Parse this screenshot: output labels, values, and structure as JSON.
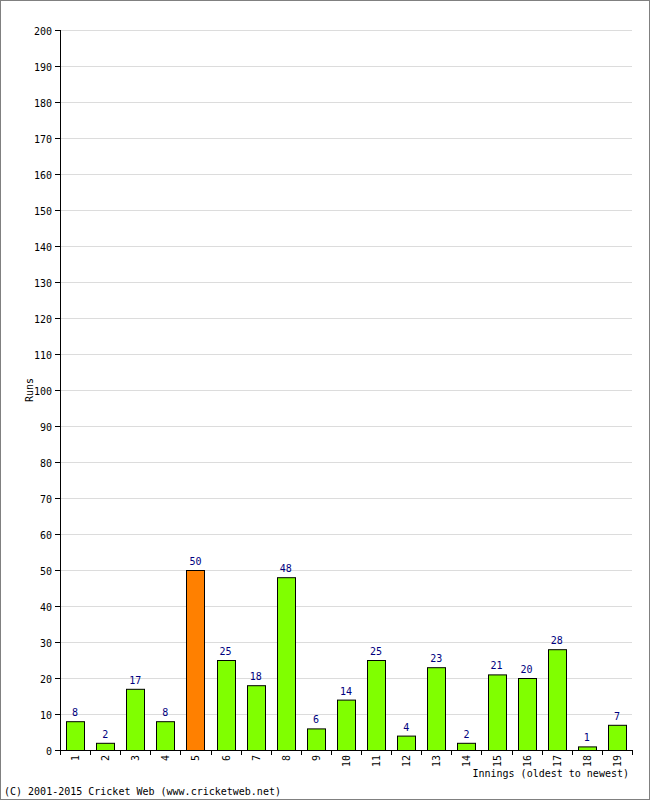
{
  "chart_data": {
    "type": "bar",
    "categories": [
      "1",
      "2",
      "3",
      "4",
      "5",
      "6",
      "7",
      "8",
      "9",
      "10",
      "11",
      "12",
      "13",
      "14",
      "15",
      "16",
      "17",
      "18",
      "19"
    ],
    "values": [
      8,
      2,
      17,
      8,
      50,
      25,
      18,
      48,
      6,
      14,
      25,
      4,
      23,
      2,
      21,
      20,
      28,
      1,
      7
    ],
    "colors": [
      "#80ff00",
      "#80ff00",
      "#80ff00",
      "#80ff00",
      "#ff8000",
      "#80ff00",
      "#80ff00",
      "#80ff00",
      "#80ff00",
      "#80ff00",
      "#80ff00",
      "#80ff00",
      "#80ff00",
      "#80ff00",
      "#80ff00",
      "#80ff00",
      "#80ff00",
      "#80ff00",
      "#80ff00"
    ],
    "ylim": [
      0,
      200
    ],
    "yticks": [
      0,
      10,
      20,
      30,
      40,
      50,
      60,
      70,
      80,
      90,
      100,
      110,
      120,
      130,
      140,
      150,
      160,
      170,
      180,
      190,
      200
    ],
    "grid": true,
    "data_labels": true,
    "x_label": "Innings (oldest to newest)",
    "y_label": "Runs",
    "annotations": [
      "(C) 2001-2015 Cricket Web (www.cricketweb.net)"
    ]
  }
}
